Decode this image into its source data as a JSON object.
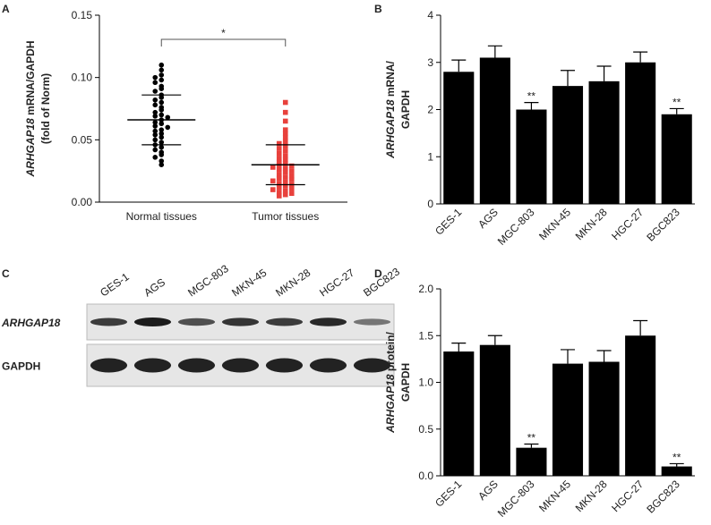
{
  "chart_data": [
    {
      "type": "dot",
      "panel": "A",
      "y_label": [
        "ARHGAP18 mRNA/GAPDH",
        "(fold of Norm)"
      ],
      "categories": [
        "Normal tissues",
        "Tumor tissues"
      ],
      "groups": [
        {
          "color": "#000000",
          "marker": "circle",
          "mean": 0.066,
          "sd": 0.02,
          "values": [
            0.11,
            0.106,
            0.102,
            0.1,
            0.098,
            0.096,
            0.093,
            0.091,
            0.089,
            0.086,
            0.084,
            0.082,
            0.08,
            0.078,
            0.076,
            0.074,
            0.072,
            0.07,
            0.069,
            0.068,
            0.066,
            0.064,
            0.063,
            0.061,
            0.06,
            0.058,
            0.057,
            0.055,
            0.054,
            0.052,
            0.05,
            0.048,
            0.046,
            0.044,
            0.042,
            0.04,
            0.038,
            0.036,
            0.033,
            0.03
          ]
        },
        {
          "color": "#e8413c",
          "marker": "square",
          "mean": 0.03,
          "sd": 0.016,
          "values": [
            0.08,
            0.072,
            0.065,
            0.058,
            0.055,
            0.052,
            0.049,
            0.047,
            0.045,
            0.043,
            0.041,
            0.039,
            0.037,
            0.035,
            0.034,
            0.032,
            0.031,
            0.03,
            0.029,
            0.028,
            0.027,
            0.026,
            0.025,
            0.024,
            0.022,
            0.021,
            0.02,
            0.019,
            0.018,
            0.017,
            0.016,
            0.015,
            0.014,
            0.013,
            0.012,
            0.011,
            0.01,
            0.009,
            0.008,
            0.007,
            0.006,
            0.005
          ]
        }
      ],
      "annotation": "*",
      "ylim": [
        0,
        0.15
      ],
      "yticks": [
        {
          "value": 0,
          "label": "0.00"
        },
        {
          "value": 0.05,
          "label": "0.05"
        },
        {
          "value": 0.1,
          "label": "0.10"
        },
        {
          "value": 0.15,
          "label": "0.15"
        }
      ]
    },
    {
      "type": "bar",
      "panel": "B",
      "y_label": [
        "ARHGAP18 mRNA/",
        "GAPDH"
      ],
      "categories": [
        "GES-1",
        "AGS",
        "MGC-803",
        "MKN-45",
        "MKN-28",
        "HGC-27",
        "BGC823"
      ],
      "values": [
        2.8,
        3.1,
        2.0,
        2.5,
        2.6,
        3.0,
        1.9
      ],
      "errors": [
        0.25,
        0.25,
        0.15,
        0.33,
        0.32,
        0.22,
        0.12
      ],
      "value_annotations": [
        null,
        null,
        "**",
        null,
        null,
        null,
        "**"
      ],
      "color": "#000000",
      "ylim": [
        0,
        4
      ],
      "yticks": [
        0,
        1,
        2,
        3,
        4
      ]
    },
    {
      "type": "blot",
      "panel": "C",
      "categories": [
        "GES-1",
        "AGS",
        "MGC-803",
        "MKN-45",
        "MKN-28",
        "HGC-27",
        "BGC823"
      ],
      "rows": [
        "ARHGAP18",
        "GAPDH"
      ]
    },
    {
      "type": "bar",
      "panel": "D",
      "y_label": [
        "ARHGAP18 protein/",
        "GAPDH"
      ],
      "categories": [
        "GES-1",
        "AGS",
        "MGC-803",
        "MKN-45",
        "MKN-28",
        "HGC-27",
        "BGC823"
      ],
      "values": [
        1.33,
        1.4,
        0.3,
        1.2,
        1.22,
        1.5,
        0.1
      ],
      "errors": [
        0.09,
        0.1,
        0.04,
        0.15,
        0.12,
        0.16,
        0.03
      ],
      "value_annotations": [
        null,
        null,
        "**",
        null,
        null,
        null,
        "**"
      ],
      "color": "#000000",
      "ylim": [
        0,
        2
      ],
      "yticks": [
        {
          "value": 0,
          "label": "0.0"
        },
        0.5,
        {
          "value": 1,
          "label": "1.0"
        },
        1.5,
        {
          "value": 2,
          "label": "2.0"
        }
      ]
    }
  ]
}
